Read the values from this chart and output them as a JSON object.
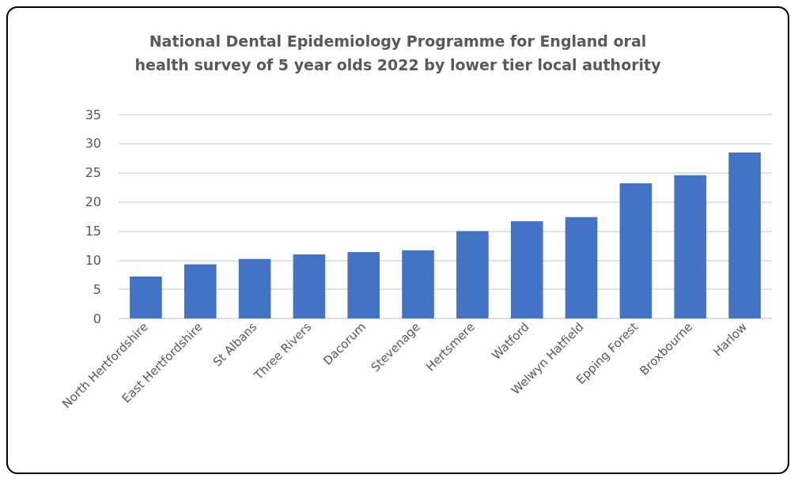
{
  "chart_data": {
    "type": "bar",
    "title": "National Dental Epidemiology Programme for England oral\nhealth survey of 5 year olds 2022 by lower tier local authority",
    "categories": [
      "North Hertfordshire",
      "East Hertfordshire",
      "St Albans",
      "Three Rivers",
      "Dacorum",
      "Stevenage",
      "Hertsmere",
      "Watford",
      "Welwyn Hatfield",
      "Epping Forest",
      "Broxbourne",
      "Harlow"
    ],
    "values": [
      7.2,
      9.3,
      10.2,
      11.0,
      11.4,
      11.7,
      15.0,
      16.7,
      17.4,
      23.2,
      24.6,
      28.5
    ],
    "color": "#4472c4",
    "ylim": [
      0,
      35
    ],
    "yticks": [
      0,
      5,
      10,
      15,
      20,
      25,
      30,
      35
    ],
    "grid": "y"
  }
}
